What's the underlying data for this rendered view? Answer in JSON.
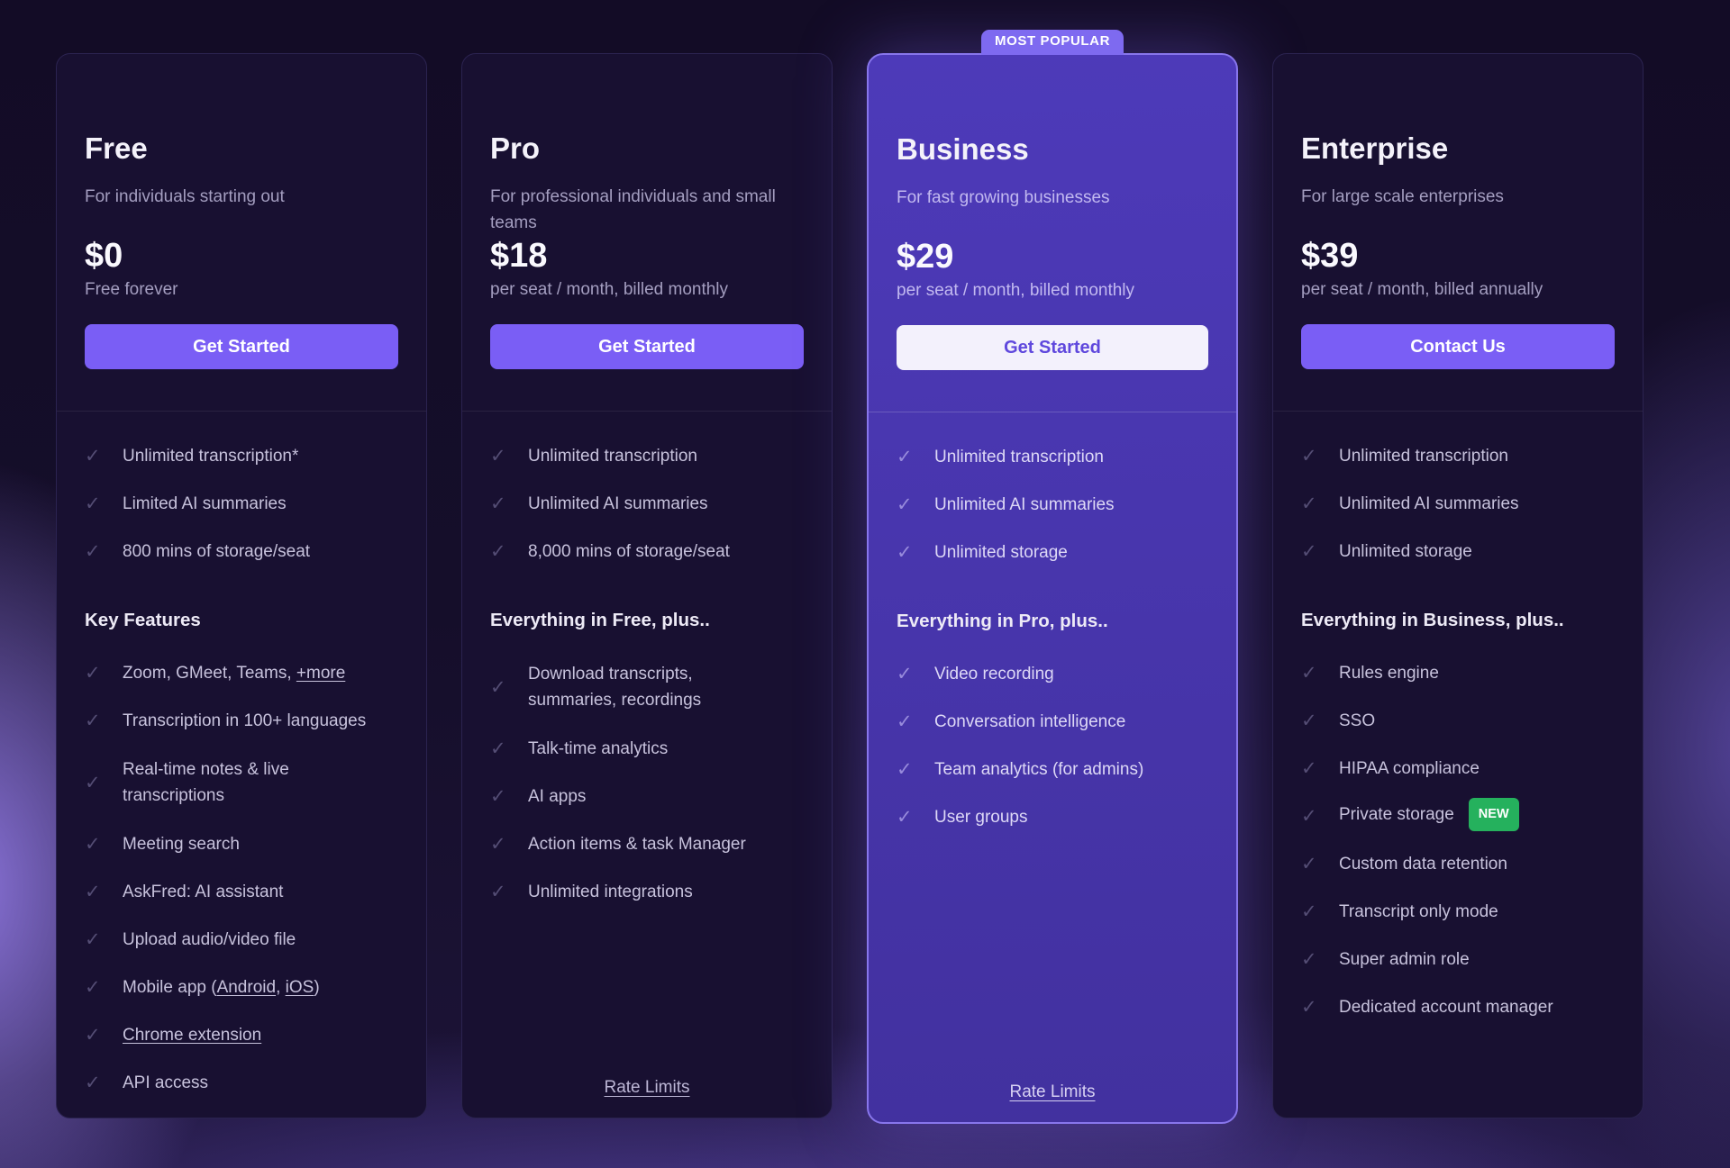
{
  "most_popular_badge": "MOST POPULAR",
  "colors": {
    "accent": "#7a5ef5",
    "highlight_card_top": "#4d3ab9",
    "highlight_card_bottom": "#42319f",
    "highlight_border": "#8876ec",
    "most_popular_badge_bg": "#7e6af0",
    "new_badge_bg": "#25b15d",
    "light_button_text": "#5f48dd",
    "page_background": "#130c26"
  },
  "cards": [
    {
      "id": "free",
      "title": "Free",
      "description": "For individuals starting out",
      "price": "$0",
      "price_note": "Free forever",
      "cta": {
        "label": "Get Started",
        "variant": "solid"
      },
      "highlight": false,
      "top_features": [
        [
          {
            "t": "Unlimited transcription*"
          }
        ],
        [
          {
            "t": "Limited AI summaries"
          }
        ],
        [
          {
            "t": "800 mins of storage/seat"
          }
        ]
      ],
      "section_heading": "Key Features",
      "features": [
        [
          {
            "t": "Zoom, GMeet, Teams, "
          },
          {
            "t": "+more",
            "u": true
          }
        ],
        [
          {
            "t": "Transcription in 100+ languages"
          }
        ],
        [
          {
            "t": "Real-time notes & live"
          },
          {
            "br": true
          },
          {
            "t": "transcriptions"
          }
        ],
        [
          {
            "t": "Meeting search"
          }
        ],
        [
          {
            "t": "AskFred: AI assistant"
          }
        ],
        [
          {
            "t": "Upload audio/video file"
          }
        ],
        [
          {
            "t": "Mobile app ("
          },
          {
            "t": "Android",
            "u": true
          },
          {
            "t": ", "
          },
          {
            "t": "iOS",
            "u": true
          },
          {
            "t": ")"
          }
        ],
        [
          {
            "t": "Chrome extension",
            "u": true
          }
        ],
        [
          {
            "t": "API access"
          }
        ]
      ],
      "footer_link": null
    },
    {
      "id": "pro",
      "title": "Pro",
      "description": "For professional individuals and small teams",
      "price": "$18",
      "price_note": "per seat / month, billed monthly",
      "cta": {
        "label": "Get Started",
        "variant": "solid"
      },
      "highlight": false,
      "top_features": [
        [
          {
            "t": "Unlimited transcription"
          }
        ],
        [
          {
            "t": "Unlimited AI summaries"
          }
        ],
        [
          {
            "t": "8,000 mins of storage/seat"
          }
        ]
      ],
      "section_heading": "Everything in Free, plus..",
      "features": [
        [
          {
            "t": "Download transcripts,"
          },
          {
            "br": true
          },
          {
            "t": "summaries, recordings"
          }
        ],
        [
          {
            "t": "Talk-time analytics"
          }
        ],
        [
          {
            "t": "AI apps"
          }
        ],
        [
          {
            "t": "Action items & task Manager"
          }
        ],
        [
          {
            "t": "Unlimited integrations"
          }
        ]
      ],
      "footer_link": "Rate Limits"
    },
    {
      "id": "business",
      "title": "Business",
      "description": "For fast growing businesses",
      "price": "$29",
      "price_note": "per seat / month, billed monthly",
      "cta": {
        "label": "Get Started",
        "variant": "light"
      },
      "highlight": true,
      "top_features": [
        [
          {
            "t": "Unlimited transcription"
          }
        ],
        [
          {
            "t": "Unlimited AI summaries"
          }
        ],
        [
          {
            "t": "Unlimited storage"
          }
        ]
      ],
      "section_heading": "Everything in Pro, plus..",
      "features": [
        [
          {
            "t": "Video recording"
          }
        ],
        [
          {
            "t": "Conversation intelligence"
          }
        ],
        [
          {
            "t": "Team analytics (for admins)"
          }
        ],
        [
          {
            "t": "User groups"
          }
        ]
      ],
      "footer_link": "Rate Limits"
    },
    {
      "id": "enterprise",
      "title": "Enterprise",
      "description": "For large scale enterprises",
      "price": "$39",
      "price_note": "per seat / month, billed annually",
      "cta": {
        "label": "Contact Us",
        "variant": "solid"
      },
      "highlight": false,
      "top_features": [
        [
          {
            "t": "Unlimited transcription"
          }
        ],
        [
          {
            "t": "Unlimited AI summaries"
          }
        ],
        [
          {
            "t": "Unlimited storage"
          }
        ]
      ],
      "section_heading": "Everything in Business, plus..",
      "features": [
        [
          {
            "t": "Rules engine"
          }
        ],
        [
          {
            "t": "SSO"
          }
        ],
        [
          {
            "t": "HIPAA compliance"
          }
        ],
        [
          {
            "t": "Private storage"
          },
          {
            "badge": "NEW"
          }
        ],
        [
          {
            "t": "Custom data retention"
          }
        ],
        [
          {
            "t": "Transcript only mode"
          }
        ],
        [
          {
            "t": "Super admin role"
          }
        ],
        [
          {
            "t": "Dedicated account manager"
          }
        ]
      ],
      "footer_link": null
    }
  ],
  "check_icon": "✓"
}
